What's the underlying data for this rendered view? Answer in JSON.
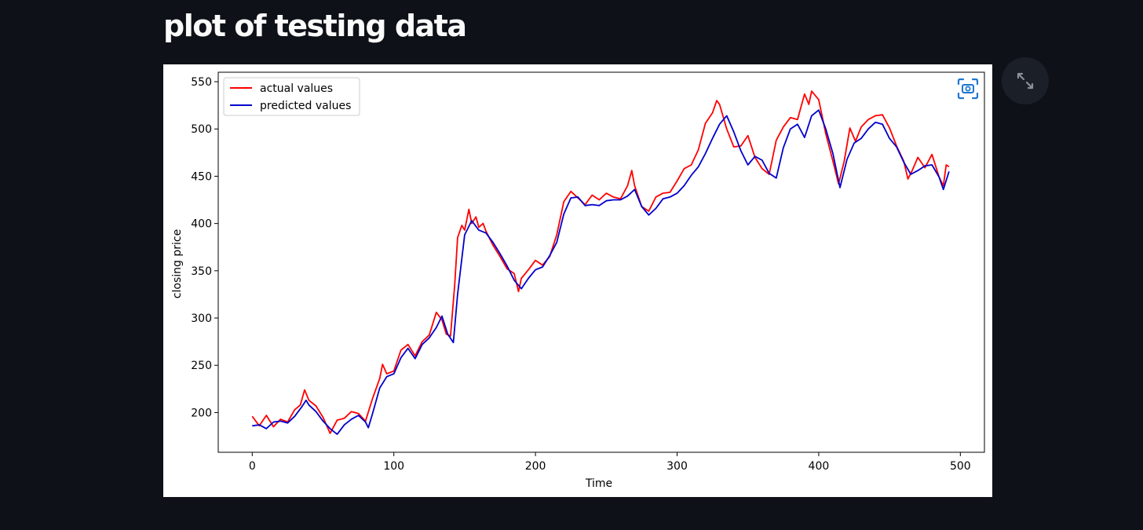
{
  "page": {
    "title": "plot of testing data"
  },
  "toolbar": {
    "camera_icon": "camera-focus-icon",
    "expand_icon": "fullscreen-expand-icon"
  },
  "colors": {
    "background": "#0e1117",
    "actual": "#ff0000",
    "predicted": "#0000cc"
  },
  "chart_data": {
    "type": "line",
    "title": "",
    "xlabel": "Time",
    "ylabel": "closing price",
    "xlim": [
      -24,
      517
    ],
    "ylim": [
      158,
      560
    ],
    "xticks": [
      0,
      100,
      200,
      300,
      400,
      500
    ],
    "yticks": [
      200,
      250,
      300,
      350,
      400,
      450,
      500,
      550
    ],
    "legend_position": "upper-left",
    "grid": false,
    "series": [
      {
        "name": "actual values",
        "color": "#ff0000",
        "x": [
          0,
          5,
          10,
          15,
          20,
          25,
          30,
          34,
          37,
          40,
          45,
          50,
          55,
          60,
          65,
          70,
          75,
          80,
          85,
          90,
          92,
          95,
          100,
          105,
          110,
          115,
          120,
          125,
          130,
          134,
          137,
          140,
          143,
          145,
          148,
          150,
          153,
          155,
          158,
          160,
          163,
          165,
          170,
          175,
          180,
          185,
          188,
          190,
          195,
          200,
          205,
          210,
          215,
          220,
          225,
          230,
          235,
          240,
          245,
          250,
          255,
          260,
          265,
          268,
          270,
          275,
          280,
          285,
          290,
          295,
          300,
          305,
          310,
          315,
          320,
          325,
          328,
          330,
          335,
          340,
          345,
          350,
          355,
          360,
          365,
          370,
          375,
          380,
          385,
          390,
          393,
          395,
          400,
          405,
          410,
          414,
          418,
          422,
          426,
          430,
          435,
          440,
          445,
          450,
          455,
          460,
          463,
          466,
          470,
          475,
          480,
          485,
          488,
          490,
          492
        ],
        "y": [
          196,
          186,
          197,
          185,
          193,
          190,
          203,
          208,
          224,
          213,
          207,
          195,
          178,
          192,
          194,
          201,
          199,
          191,
          215,
          236,
          251,
          241,
          244,
          266,
          272,
          260,
          275,
          282,
          306,
          298,
          283,
          281,
          336,
          385,
          398,
          393,
          415,
          400,
          407,
          396,
          400,
          392,
          377,
          365,
          352,
          347,
          328,
          342,
          351,
          361,
          356,
          365,
          388,
          423,
          434,
          427,
          420,
          430,
          425,
          432,
          428,
          426,
          440,
          456,
          440,
          418,
          413,
          428,
          432,
          433,
          445,
          458,
          462,
          478,
          506,
          517,
          530,
          526,
          500,
          481,
          482,
          493,
          470,
          458,
          452,
          488,
          502,
          512,
          510,
          537,
          526,
          540,
          531,
          495,
          466,
          442,
          466,
          501,
          487,
          502,
          510,
          514,
          515,
          501,
          482,
          466,
          447,
          456,
          470,
          459,
          473,
          449,
          440,
          462,
          460
        ]
      },
      {
        "name": "predicted values",
        "color": "#0000cc",
        "x": [
          0,
          5,
          10,
          15,
          20,
          25,
          30,
          35,
          38,
          40,
          45,
          50,
          55,
          60,
          65,
          70,
          75,
          80,
          82,
          85,
          90,
          95,
          100,
          105,
          110,
          115,
          120,
          125,
          130,
          134,
          138,
          142,
          145,
          150,
          155,
          160,
          165,
          170,
          175,
          180,
          185,
          190,
          195,
          200,
          205,
          210,
          215,
          220,
          225,
          230,
          235,
          240,
          245,
          250,
          255,
          260,
          265,
          270,
          275,
          280,
          285,
          290,
          295,
          300,
          305,
          310,
          315,
          320,
          325,
          330,
          335,
          340,
          345,
          350,
          355,
          360,
          365,
          370,
          375,
          380,
          385,
          390,
          395,
          400,
          405,
          410,
          415,
          420,
          425,
          430,
          435,
          440,
          445,
          450,
          455,
          460,
          465,
          470,
          475,
          480,
          485,
          488,
          492
        ],
        "y": [
          186,
          187,
          183,
          190,
          191,
          189,
          196,
          206,
          213,
          208,
          201,
          191,
          183,
          177,
          187,
          193,
          197,
          190,
          184,
          199,
          226,
          238,
          241,
          258,
          268,
          257,
          272,
          279,
          290,
          302,
          283,
          274,
          325,
          388,
          403,
          393,
          390,
          380,
          368,
          355,
          340,
          331,
          342,
          351,
          354,
          366,
          380,
          410,
          427,
          428,
          419,
          420,
          419,
          424,
          425,
          425,
          429,
          436,
          418,
          409,
          416,
          426,
          428,
          432,
          440,
          451,
          460,
          474,
          490,
          505,
          514,
          497,
          477,
          462,
          471,
          467,
          453,
          448,
          480,
          500,
          505,
          491,
          514,
          520,
          500,
          474,
          438,
          468,
          485,
          490,
          500,
          507,
          505,
          490,
          481,
          465,
          452,
          456,
          461,
          462,
          449,
          436,
          455
        ]
      }
    ]
  }
}
